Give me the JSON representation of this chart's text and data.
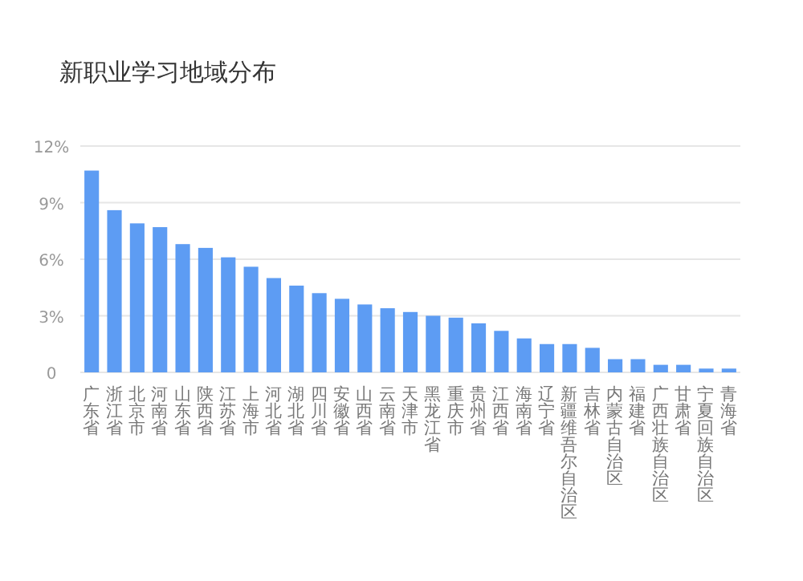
{
  "chart_data": {
    "type": "bar",
    "title": "新职业学习地域分布",
    "categories": [
      "广东省",
      "浙江省",
      "北京市",
      "河南省",
      "山东省",
      "陕西省",
      "江苏省",
      "上海市",
      "河北省",
      "湖北省",
      "四川省",
      "安徽省",
      "山西省",
      "云南省",
      "天津市",
      "黑龙江省",
      "重庆市",
      "贵州省",
      "江西省",
      "海南省",
      "辽宁省",
      "新疆维吾尔自治区",
      "吉林省",
      "内蒙古自治区",
      "福建省",
      "广西壮族自治区",
      "甘肃省",
      "宁夏回族自治区",
      "青海省"
    ],
    "values": [
      10.7,
      8.6,
      7.9,
      7.7,
      6.8,
      6.6,
      6.1,
      5.6,
      5.0,
      4.6,
      4.2,
      3.9,
      3.6,
      3.4,
      3.2,
      3.0,
      2.9,
      2.6,
      2.2,
      1.8,
      1.5,
      1.5,
      1.3,
      0.7,
      0.7,
      0.4,
      0.4,
      0.2,
      0.2
    ],
    "color": "#5d9cf3",
    "ylim": [
      0,
      12
    ],
    "yticks": [
      0,
      {
        "value": 3,
        "label": "3%"
      },
      {
        "value": 6,
        "label": "6%"
      },
      {
        "value": 9,
        "label": "9%"
      },
      {
        "value": 12,
        "label": "12%"
      }
    ],
    "grid": "y"
  }
}
